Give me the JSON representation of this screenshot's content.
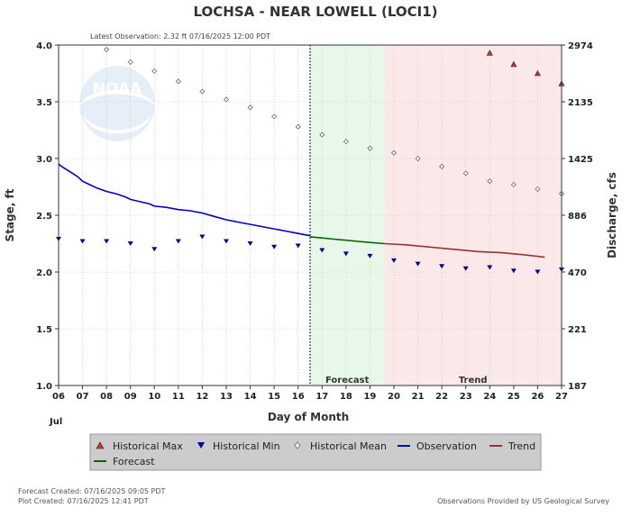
{
  "header": {
    "title": "LOCHSA - NEAR LOWELL  (LOCI1)",
    "latest_observation": "Latest Observation: 2.32 ft 07/16/2025 12:00 PDT"
  },
  "footer": {
    "forecast_created": "Forecast Created: 07/16/2025 09:05 PDT",
    "plot_created": "Plot Created: 07/16/2025 12:41 PDT",
    "provider": "Observations Provided by US Geological Survey"
  },
  "colors": {
    "observation": "#0000cc",
    "forecast": "#006600",
    "trend": "#993333",
    "historical_max": "#cc3333",
    "historical_min": "#000099",
    "historical_mean": "#666666",
    "forecast_band": "#e8f8e8",
    "trend_band": "#fbe9e9"
  },
  "chart_data": {
    "type": "line",
    "title": "LOCHSA - NEAR LOWELL  (LOCI1)",
    "xlabel": "Day of Month",
    "ylabel": "Stage, ft",
    "y2label": "Discharge, cfs",
    "month_label": "Jul",
    "xlim": [
      6,
      27
    ],
    "ylim": [
      1.0,
      4.0
    ],
    "x_ticks": [
      "06",
      "07",
      "08",
      "09",
      "10",
      "11",
      "12",
      "13",
      "14",
      "15",
      "16",
      "17",
      "18",
      "19",
      "20",
      "21",
      "22",
      "23",
      "24",
      "25",
      "26",
      "27"
    ],
    "y_ticks": [
      "1.0",
      "1.5",
      "2.0",
      "2.5",
      "3.0",
      "3.5",
      "4.0"
    ],
    "y2_ticks": [
      {
        "stage": 1.0,
        "label": "187"
      },
      {
        "stage": 1.5,
        "label": "221"
      },
      {
        "stage": 2.0,
        "label": "470"
      },
      {
        "stage": 2.5,
        "label": "886"
      },
      {
        "stage": 3.0,
        "label": "1425"
      },
      {
        "stage": 3.5,
        "label": "2135"
      },
      {
        "stage": 4.0,
        "label": "2974"
      }
    ],
    "grid": true,
    "regions": [
      {
        "name": "Forecast",
        "x": [
          16.5,
          19.6
        ]
      },
      {
        "name": "Trend",
        "x": [
          19.6,
          27
        ]
      }
    ],
    "legend": [
      "Historical Max",
      "Historical Min",
      "Historical Mean",
      "Observation",
      "Trend",
      "Forecast"
    ],
    "legend_position": "bottom",
    "series": [
      {
        "name": "Observation",
        "x": [
          6.0,
          6.2,
          6.5,
          6.8,
          7.0,
          7.3,
          7.6,
          8.0,
          8.4,
          8.8,
          9.0,
          9.4,
          9.8,
          10.0,
          10.5,
          11.0,
          11.5,
          12.0,
          12.5,
          13.0,
          13.5,
          14.0,
          14.5,
          15.0,
          15.5,
          16.0,
          16.5
        ],
        "y": [
          2.95,
          2.92,
          2.88,
          2.84,
          2.8,
          2.77,
          2.74,
          2.71,
          2.69,
          2.66,
          2.64,
          2.62,
          2.6,
          2.58,
          2.57,
          2.55,
          2.54,
          2.52,
          2.49,
          2.46,
          2.44,
          2.42,
          2.4,
          2.38,
          2.36,
          2.34,
          2.32
        ]
      },
      {
        "name": "Forecast",
        "x": [
          16.5,
          17.0,
          17.5,
          18.0,
          18.5,
          19.0,
          19.6
        ],
        "y": [
          2.31,
          2.3,
          2.29,
          2.28,
          2.27,
          2.26,
          2.25
        ]
      },
      {
        "name": "Trend",
        "x": [
          19.6,
          20.5,
          21.5,
          22.5,
          23.5,
          24.5,
          25.5,
          26.3
        ],
        "y": [
          2.25,
          2.24,
          2.22,
          2.2,
          2.18,
          2.17,
          2.15,
          2.13
        ]
      },
      {
        "name": "Historical Max",
        "x": [
          24,
          25,
          26,
          27
        ],
        "y": [
          3.93,
          3.83,
          3.75,
          3.66
        ]
      },
      {
        "name": "Historical Min",
        "x": [
          6,
          7,
          8,
          9,
          10,
          11,
          12,
          13,
          14,
          15,
          16,
          17,
          18,
          19,
          20,
          21,
          22,
          23,
          24,
          25,
          26,
          27
        ],
        "y": [
          2.29,
          2.27,
          2.27,
          2.25,
          2.2,
          2.27,
          2.31,
          2.27,
          2.25,
          2.22,
          2.23,
          2.19,
          2.16,
          2.14,
          2.1,
          2.07,
          2.05,
          2.03,
          2.04,
          2.01,
          2.0,
          2.02
        ]
      },
      {
        "name": "Historical Mean",
        "x": [
          8,
          9,
          10,
          11,
          12,
          13,
          14,
          15,
          16,
          17,
          18,
          19,
          20,
          21,
          22,
          23,
          24,
          25,
          26,
          27
        ],
        "y": [
          3.96,
          3.85,
          3.77,
          3.68,
          3.59,
          3.52,
          3.45,
          3.37,
          3.28,
          3.21,
          3.15,
          3.09,
          3.05,
          3.0,
          2.93,
          2.87,
          2.8,
          2.77,
          2.73,
          2.69
        ]
      }
    ]
  }
}
